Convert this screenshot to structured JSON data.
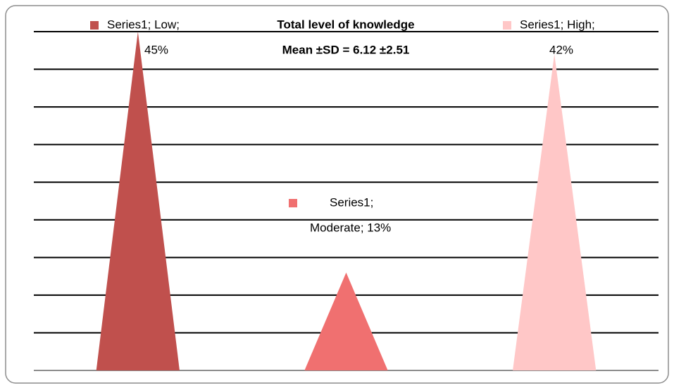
{
  "chart_data": {
    "type": "cone-bar",
    "title": "Total level of knowledge",
    "subtitle": "Mean ±SD = 6.12 ±2.51",
    "categories": [
      "Low",
      "Moderate",
      "High"
    ],
    "series": [
      {
        "name": "Series1",
        "colors": [
          "#c0504d",
          "#f07070",
          "#ffc7c7"
        ],
        "values": [
          45,
          13,
          42
        ],
        "value_labels": [
          [
            "Series1; Low;",
            "45%"
          ],
          [
            "Series1;",
            "Moderate; 13%"
          ],
          [
            "Series1; High;",
            "42%"
          ]
        ]
      }
    ],
    "ylim": [
      0,
      45
    ],
    "yticks": [
      0,
      5,
      10,
      15,
      20,
      25,
      30,
      35,
      40,
      45
    ],
    "grid": true
  }
}
